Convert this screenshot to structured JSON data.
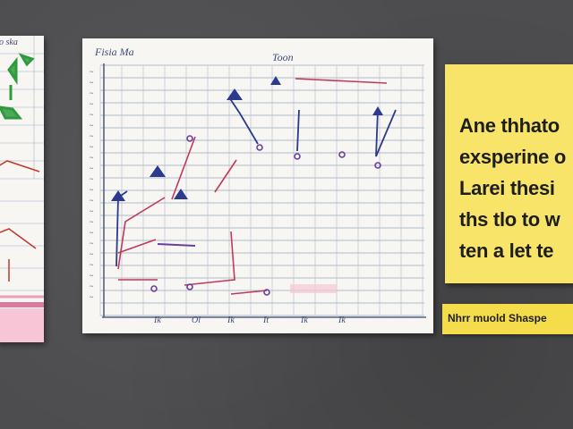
{
  "left_sheet": {
    "header_text": "o ska"
  },
  "chart": {
    "title_left": "Fisia Ma",
    "title_right": "Toon",
    "x_tick_labels": [
      "Ik",
      "Ol",
      "Ik",
      "It",
      "Ik",
      "Ik"
    ]
  },
  "sticky_note": {
    "lines": [
      "Ane thhato",
      "exsperine o",
      "Larei thesi",
      "ths tlo to w",
      "ten a let te"
    ]
  },
  "caption": {
    "text": "Nhrr muold Shaspe"
  },
  "colors": {
    "paper": "#f7f6f2",
    "sticky": "#f7e468",
    "caption": "#f4dc4a",
    "board": "#4d4d4f"
  }
}
